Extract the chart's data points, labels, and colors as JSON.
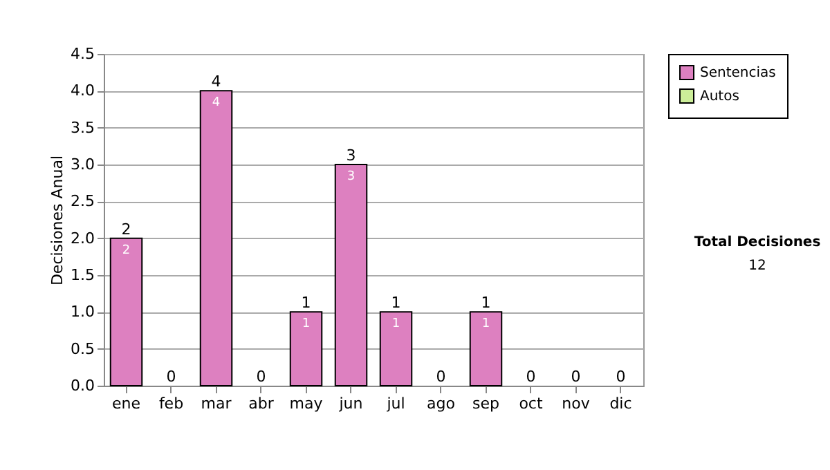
{
  "chart_data": {
    "type": "bar",
    "stacked": true,
    "ylabel": "Decisiones Anual",
    "categories": [
      "ene",
      "feb",
      "mar",
      "abr",
      "may",
      "jun",
      "jul",
      "ago",
      "sep",
      "oct",
      "nov",
      "dic"
    ],
    "series": [
      {
        "name": "Sentencias",
        "color": "#dd80c0",
        "values": [
          2,
          0,
          4,
          0,
          1,
          3,
          1,
          0,
          1,
          0,
          0,
          0
        ],
        "value_labels": [
          "2",
          null,
          "4",
          null,
          "1",
          "3",
          "1",
          null,
          "1",
          null,
          null,
          null
        ]
      },
      {
        "name": "Autos",
        "color": "#ccee99",
        "values": [
          0,
          0,
          0,
          0,
          0,
          0,
          0,
          0,
          0,
          0,
          0,
          0
        ]
      }
    ],
    "totals": [
      "2",
      "0",
      "4",
      "0",
      "1",
      "3",
      "1",
      "0",
      "1",
      "0",
      "0",
      "0"
    ],
    "ylim": [
      0,
      4.5
    ],
    "yticks": [
      {
        "value": 0,
        "label": "0.0"
      },
      {
        "value": 0.5,
        "label": "0.5"
      },
      {
        "value": 1,
        "label": "1.0"
      },
      {
        "value": 1.5,
        "label": "1.5"
      },
      {
        "value": 2,
        "label": "2.0"
      },
      {
        "value": 2.5,
        "label": "2.5"
      },
      {
        "value": 3,
        "label": "3.0"
      },
      {
        "value": 3.5,
        "label": "3.5"
      },
      {
        "value": 4,
        "label": "4.0"
      },
      {
        "value": 4.5,
        "label": "4.5"
      }
    ],
    "grid": "y",
    "legend": "right",
    "annotations": [
      "Total Decisiones",
      "12"
    ]
  }
}
